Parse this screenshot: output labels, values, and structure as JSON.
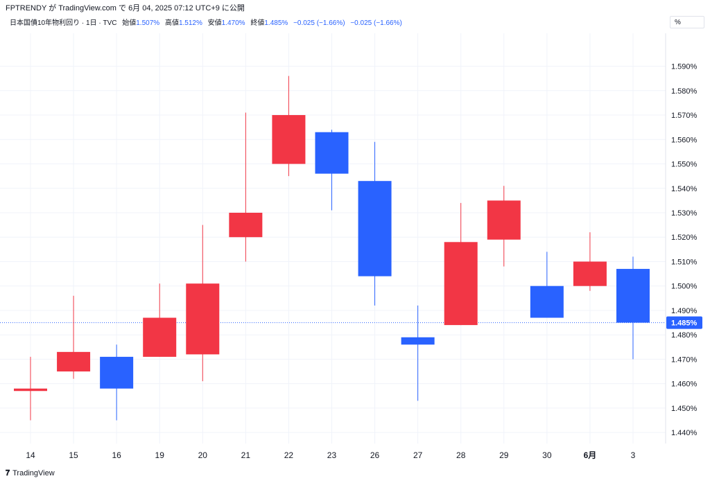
{
  "caption": "FPTRENDY が TradingView.com で 6月 04, 2025 07:12 UTC+9 に公開",
  "legend": {
    "symbol": "日本国債10年物利回り · 1日 · TVC",
    "open_label": "始値",
    "open_value": "1.507%",
    "high_label": "高値",
    "high_value": "1.512%",
    "low_label": "安値",
    "low_value": "1.470%",
    "close_label": "終値",
    "close_value": "1.485%",
    "change": "−0.025 (−1.66%)",
    "change2": "−0.025 (−1.66%)"
  },
  "unit_label": "%",
  "footer": {
    "logo": "𝟕",
    "text": "TradingView"
  },
  "colors": {
    "up": "#f23645",
    "down": "#2962ff",
    "grid": "#f0f3fa",
    "price_line": "#2962ff"
  },
  "chart_data": {
    "type": "candlestick",
    "categories": [
      "14",
      "15",
      "16",
      "19",
      "20",
      "21",
      "22",
      "23",
      "26",
      "27",
      "28",
      "29",
      "30",
      "6月",
      "3"
    ],
    "bold_categories": [
      "6月"
    ],
    "series": [
      {
        "open": 1.457,
        "high": 1.471,
        "low": 1.445,
        "close": 1.458
      },
      {
        "open": 1.465,
        "high": 1.496,
        "low": 1.462,
        "close": 1.473
      },
      {
        "open": 1.471,
        "high": 1.476,
        "low": 1.445,
        "close": 1.458
      },
      {
        "open": 1.471,
        "high": 1.501,
        "low": 1.471,
        "close": 1.487
      },
      {
        "open": 1.472,
        "high": 1.525,
        "low": 1.461,
        "close": 1.501
      },
      {
        "open": 1.52,
        "high": 1.571,
        "low": 1.51,
        "close": 1.53
      },
      {
        "open": 1.55,
        "high": 1.586,
        "low": 1.545,
        "close": 1.57
      },
      {
        "open": 1.563,
        "high": 1.564,
        "low": 1.531,
        "close": 1.546
      },
      {
        "open": 1.543,
        "high": 1.559,
        "low": 1.492,
        "close": 1.504
      },
      {
        "open": 1.479,
        "high": 1.492,
        "low": 1.453,
        "close": 1.476
      },
      {
        "open": 1.484,
        "high": 1.534,
        "low": 1.484,
        "close": 1.518
      },
      {
        "open": 1.519,
        "high": 1.541,
        "low": 1.508,
        "close": 1.535
      },
      {
        "open": 1.5,
        "high": 1.514,
        "low": 1.487,
        "close": 1.487
      },
      {
        "open": 1.5,
        "high": 1.522,
        "low": 1.498,
        "close": 1.51
      },
      {
        "open": 1.507,
        "high": 1.512,
        "low": 1.47,
        "close": 1.485
      }
    ],
    "y_ticks": [
      "1.440%",
      "1.450%",
      "1.460%",
      "1.470%",
      "1.480%",
      "1.490%",
      "1.500%",
      "1.510%",
      "1.520%",
      "1.530%",
      "1.540%",
      "1.550%",
      "1.560%",
      "1.570%",
      "1.580%",
      "1.590%"
    ],
    "ylim": [
      1.4355,
      1.6035
    ],
    "last_price": 1.485,
    "last_price_label": "1.485%",
    "grid": true
  }
}
